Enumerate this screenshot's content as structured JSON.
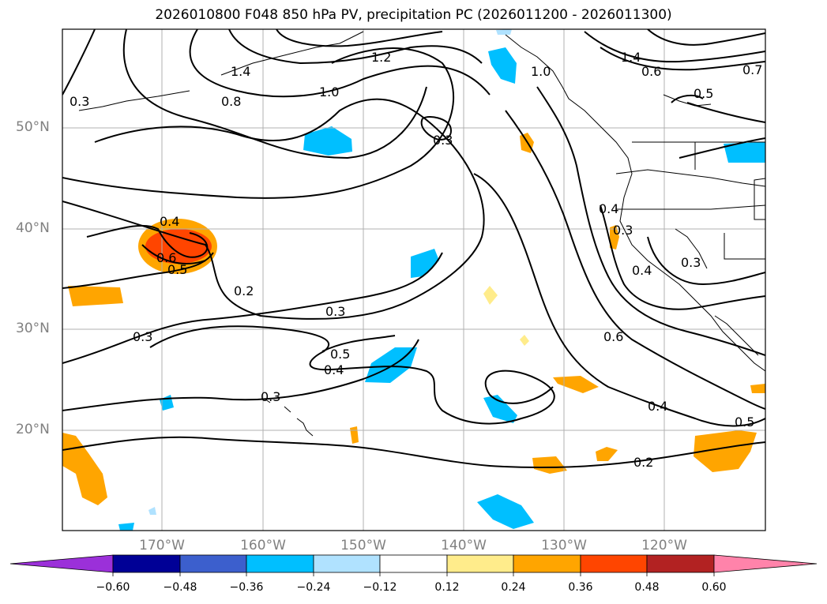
{
  "title": "2026010800 F048 850 hPa PV, precipitation PC (2026011200 - 2026011300)",
  "map": {
    "lon_range": [
      -180,
      -110
    ],
    "lat_range": [
      10,
      60
    ],
    "lat_labels": [
      "50°N",
      "40°N",
      "30°N",
      "20°N"
    ],
    "lon_labels": [
      "170°W",
      "160°W",
      "150°W",
      "140°W",
      "130°W",
      "120°W"
    ],
    "contour_labels": [
      "1.4",
      "1.2",
      "1.0",
      "0.8",
      "0.3",
      "0.3",
      "0.4",
      "0.6",
      "0.5",
      "0.2",
      "0.3",
      "0.3",
      "0.5",
      "0.4",
      "0.3",
      "0.4",
      "0.3",
      "0.4",
      "0.3",
      "0.6",
      "0.4",
      "0.5",
      "0.2",
      "1.4",
      "0.6",
      "0.7",
      "0.5",
      "1.0"
    ]
  },
  "colorbar": {
    "colors": [
      "#9b30d9",
      "#000096",
      "#3c5fcd",
      "#00bfff",
      "#b0e2ff",
      "#ffffff",
      "#ffec8b",
      "#ffa500",
      "#ff4500",
      "#b22222",
      "#ff83aa"
    ],
    "tick_labels": [
      "−0.60",
      "−0.48",
      "−0.36",
      "−0.24",
      "−0.12",
      "0.12",
      "0.24",
      "0.36",
      "0.48",
      "0.60"
    ]
  }
}
